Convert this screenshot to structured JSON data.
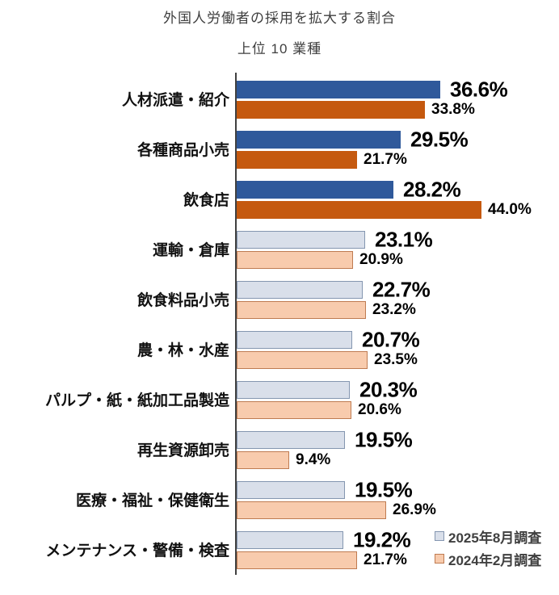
{
  "title": "外国人労働者の採用を拡大する割合",
  "subtitle": "上位 10 業種",
  "legend": {
    "position": "bottom-right",
    "items": [
      {
        "label": "2025年8月調査",
        "fill": "#D9DFEA",
        "border": "#8496B0"
      },
      {
        "label": "2024年2月調査",
        "fill": "#F8CBAD",
        "border": "#BF7B51"
      }
    ]
  },
  "chart_data": {
    "type": "bar",
    "orientation": "horizontal",
    "title": "外国人労働者の採用を拡大する割合",
    "subtitle": "上位 10 業種",
    "categories": [
      "人材派遣・紹介",
      "各種商品小売",
      "飲食店",
      "運輸・倉庫",
      "飲食料品小売",
      "農・林・水産",
      "パルプ・紙・紙加工品製造",
      "再生資源卸売",
      "医療・福祉・保健衛生",
      "メンテナンス・警備・検査"
    ],
    "series": [
      {
        "name": "2025年8月調査",
        "values": [
          36.6,
          29.5,
          28.2,
          23.1,
          22.7,
          20.7,
          20.3,
          19.5,
          19.5,
          19.2
        ]
      },
      {
        "name": "2024年2月調査",
        "values": [
          33.8,
          21.7,
          44.0,
          20.9,
          23.2,
          23.5,
          20.6,
          9.4,
          26.9,
          21.7
        ]
      }
    ],
    "value_suffix": "%",
    "value_decimals": 1,
    "xlim": [
      0,
      58
    ],
    "grid": false,
    "highlight_top_n": 3,
    "colors": {
      "series1_dark": "#2F599B",
      "series1_light": "#D9DFEA",
      "series1_light_border": "#8496B0",
      "series2_dark": "#C5590F",
      "series2_light": "#F8CBAD",
      "series2_light_border": "#BF7B51"
    }
  }
}
